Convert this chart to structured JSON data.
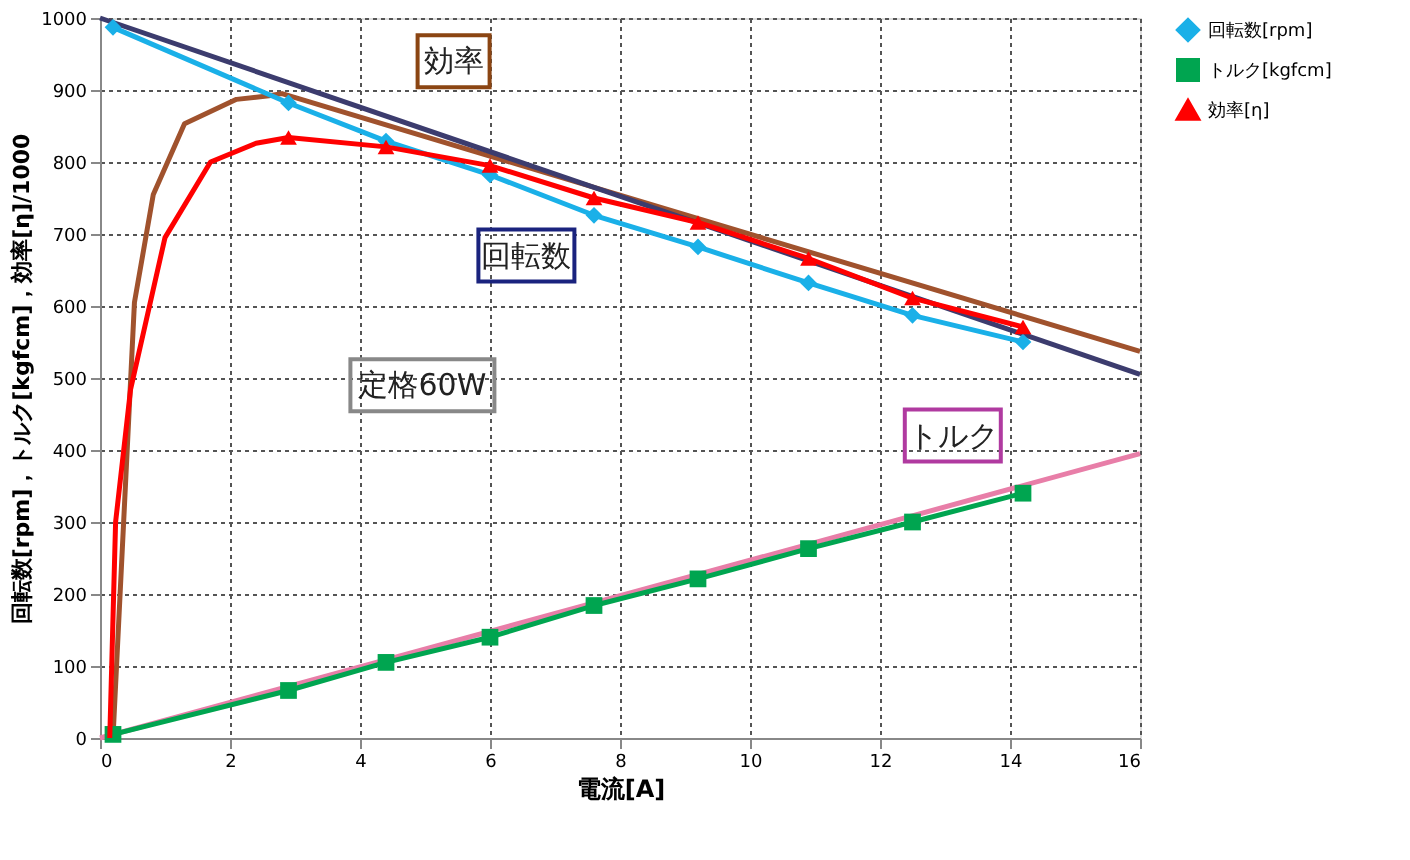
{
  "chart_data": {
    "type": "line",
    "xlabel": "電流[A]",
    "ylabel": "回転数[rpm]，トルク[kgfcm]，効率[η]/1000",
    "xlim": [
      0,
      16
    ],
    "xticks": [
      0,
      2,
      4,
      6,
      8,
      10,
      12,
      14,
      16
    ],
    "ylim": [
      0,
      1000
    ],
    "yticks": [
      0,
      100,
      200,
      300,
      400,
      500,
      600,
      700,
      800,
      900,
      1000
    ],
    "grid": true,
    "legend": "right",
    "line_style": "solid",
    "series": [
      {
        "color": "#a0522d",
        "marker": "none",
        "x": [
          0.2,
          0.53,
          0.82,
          1.3,
          2.1,
          2.6,
          2.8,
          16
        ],
        "values": [
          0,
          605,
          755,
          853,
          887,
          892,
          895,
          537
        ]
      },
      {
        "color": "#3c3c6e",
        "marker": "none",
        "x": [
          0,
          16
        ],
        "values": [
          1000,
          505
        ]
      },
      {
        "color": "#e87ea8",
        "marker": "none",
        "x": [
          0,
          16
        ],
        "values": [
          0,
          395
        ]
      },
      {
        "name": "回転数[rpm]",
        "color": "#1ab0e8",
        "marker": "diamond",
        "x": [
          0.2,
          2.9,
          4.4,
          6.0,
          7.6,
          9.2,
          10.9,
          12.5,
          14.2
        ],
        "values": [
          987,
          882,
          829,
          782,
          726,
          682,
          632,
          587,
          550
        ]
      },
      {
        "name": "トルク[kgfcm]",
        "color": "#00a550",
        "marker": "square",
        "x": [
          0.2,
          2.9,
          4.4,
          6.0,
          7.6,
          9.2,
          10.9,
          12.5,
          14.2
        ],
        "values": [
          5,
          66,
          105,
          140,
          184,
          221,
          263,
          300,
          340
        ]
      },
      {
        "color": "#ff0000",
        "marker": "none",
        "x": [
          0.15,
          0.24,
          0.47,
          1.0,
          1.7,
          2.4,
          2.9
        ],
        "values": [
          0,
          300,
          484,
          695,
          800,
          826,
          834
        ]
      },
      {
        "name": "効率[η]",
        "color": "#ff0000",
        "marker": "triangle",
        "x": [
          2.9,
          4.4,
          6.0,
          7.6,
          9.2,
          10.9,
          12.5,
          14.2
        ],
        "values": [
          834,
          821,
          795,
          750,
          716,
          666,
          611,
          571
        ]
      }
    ],
    "annotations": [
      "効率",
      "回転数",
      "定格60W",
      "トルク"
    ]
  }
}
